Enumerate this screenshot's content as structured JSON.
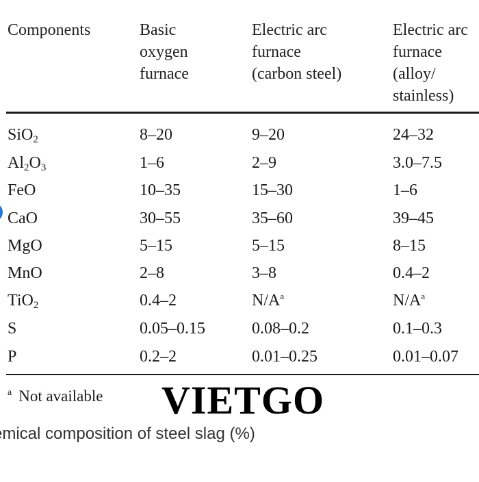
{
  "table": {
    "headers": [
      [
        "Components"
      ],
      [
        "Basic",
        "oxygen",
        "furnace"
      ],
      [
        "Electric arc",
        "furnace",
        "(carbon steel)"
      ],
      [
        "Electric arc",
        "furnace",
        "(alloy/",
        "stainless)"
      ]
    ],
    "rows": [
      {
        "component": "SiO",
        "sub": "2",
        "values": [
          "8–20",
          "9–20",
          "24–32"
        ]
      },
      {
        "component": "Al",
        "sub": "2",
        "component2": "O",
        "sub2": "3",
        "values": [
          "1–6",
          "2–9",
          "3.0–7.5"
        ]
      },
      {
        "component": "FeO",
        "values": [
          "10–35",
          "15–30",
          "1–6"
        ]
      },
      {
        "component": "CaO",
        "values": [
          "30–55",
          "35–60",
          "39–45"
        ]
      },
      {
        "component": "MgO",
        "values": [
          "5–15",
          "5–15",
          "8–15"
        ]
      },
      {
        "component": "MnO",
        "values": [
          "2–8",
          "3–8",
          "0.4–2"
        ]
      },
      {
        "component": "TiO",
        "sub": "2",
        "values": [
          "0.4–2",
          "N/A",
          "N/A"
        ],
        "marks": [
          "",
          "a",
          "a"
        ]
      },
      {
        "component": "S",
        "values": [
          "0.05–0.15",
          "0.08–0.2",
          "0.1–0.3"
        ]
      },
      {
        "component": "P",
        "values": [
          "0.2–2",
          "0.01–0.25",
          "0.01–0.07"
        ]
      }
    ],
    "footnote_mark": "a",
    "footnote_text": "Not available"
  },
  "watermark": "VIETGO",
  "caption": "emical composition of steel slag (%)",
  "colors": {
    "text": "#1a1a1a",
    "accent_dot": "#1f7ae0"
  }
}
